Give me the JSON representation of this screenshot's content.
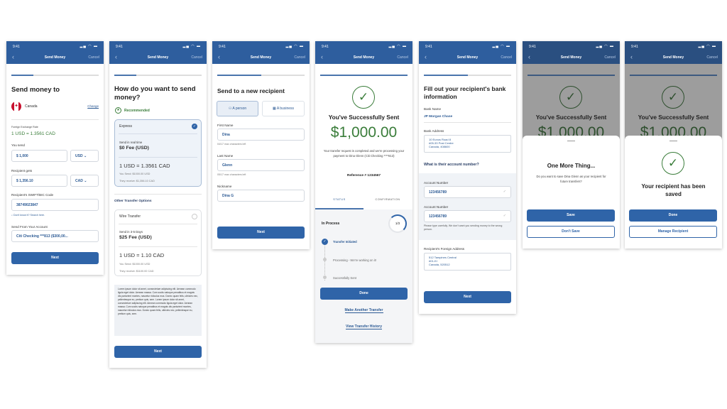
{
  "common": {
    "time": "9:41",
    "status_icons": "signal wifi battery",
    "title": "Send Money",
    "cancel": "Cancel",
    "back_icon": "chevron-left-icon"
  },
  "colors": {
    "header": "#2e5e9e",
    "primary": "#2f64a8",
    "success": "#3a7d3a"
  },
  "s1": {
    "title": "Send money to",
    "country": "Canada",
    "change": "Change",
    "fx_label": "Foreign Exchange Rate",
    "fx_rate": "1 USD = 1.3561 CAD",
    "send_label": "You send",
    "send_value": "$ 1,000",
    "send_currency": "USD",
    "gets_label": "Recipient gets",
    "gets_value": "$ 1,356.10",
    "gets_currency": "CAD",
    "swift_label": "Recipient's SWIFT/BIC Code",
    "swift_value": "38749023847",
    "swift_hint": "Don't know it? Search here.",
    "from_label": "Send From Your Account",
    "from_value": "Citi Checking ***813 ($300,00...",
    "next": "Next",
    "progress": 0.25
  },
  "s2": {
    "title": "How do you want to send money?",
    "recommended": "Recommended",
    "express": {
      "name": "Express",
      "speed": "Send in real time",
      "fee": "$0 Fee (USD)",
      "rate": "1 USD = 1.3561 CAD",
      "send": "You Send: $1000.00 USD",
      "receive": "They receive: $1,356.10 CAD",
      "selected": true
    },
    "other_label": "Other Transfer Options",
    "wire": {
      "name": "Wire Transfer",
      "speed": "Send in 3-5 Days",
      "fee": "$25 Fee (USD)",
      "rate": "1 USD = 1.10 CAD",
      "send": "You Send: $1000.00 USD",
      "receive": "They receive: $1100.00 CAD",
      "selected": false
    },
    "lorem": "Lorem ipsum dolor sit amet, consectetuer adipiscing elit. Aenean commodo ligula eget dolor. Aenean massa. Cum sociis natoque penatibus et magnis dis parturient montes, nascetur ridiculus mus. Donec quam felis, ultricies nec, pellentesque eu, pretium quis, sem. Lorem ipsum dolor sit amet, consectetuer adipiscing elit. Aenean commodo ligula eget dolor. Aenean massa. Cum sociis natoque penatibus et magnis dis parturient montes, nascetur ridiculus mus. Donec quam felis, ultricies nec, pellentesque eu, pretium quis, sem.",
    "next": "Next",
    "progress": 0.25
  },
  "s3": {
    "title": "Send to a new recipient",
    "person": "A person",
    "business": "A business",
    "first_label": "First Name",
    "first_value": "Dina",
    "first_hint": "04/17 max characters left",
    "last_label": "Last Name",
    "last_value": "Glenn",
    "last_hint": "05/17 max characters left",
    "nick_label": "Nickname",
    "nick_value": "Dina G",
    "next": "Next",
    "progress": 0.5
  },
  "s4": {
    "title": "You've Successfully Sent",
    "amount": "$1,000.00",
    "message": "Your transfer request is completed and we're processing your payment to Dina Glenn (Citi Checking ****813)",
    "reference": "Reference # 1234567",
    "tab_status": "STATUS",
    "tab_confirmation": "CONFIRMATION",
    "in_process": "In Process",
    "step_count": "1/3",
    "steps": [
      "Transfer Initiated",
      "Processing - We're working on it!",
      "Successfully Sent"
    ],
    "done": "Done",
    "another": "Make Another Transfer",
    "history": "View Transfer History",
    "progress": 1
  },
  "s5": {
    "title": "Fill out your recipient's bank information",
    "bank_label": "Bank Name",
    "bank_value": "JP Morgan Chase",
    "addr_label": "Bank Address",
    "addr_lines": [
      "10 Eunos Road 8",
      "#05-33 Post Centre",
      "Canada, 408600"
    ],
    "question": "What is their account number?",
    "acct_label": "Account Number",
    "acct_value": "123456789",
    "acct2_label": "Account Number",
    "acct2_value": "123456789",
    "acct_hint": "Please type carefully. We don't want you sending money to the wrong person.",
    "foreign_label": "Recipient's Foreign Address",
    "foreign_lines": [
      "512 Tampines Central",
      "#01-KI",
      "Canada, 520512"
    ],
    "next": "Next",
    "progress": 0.5
  },
  "s6": {
    "bg_title": "You've Successfully Sent",
    "bg_amount": "$1,000.00",
    "title": "One More Thing...",
    "message": "Do you want to save Dina Glenn as your recipient for future transfers?",
    "save": "Save",
    "dont_save": "Don't Save"
  },
  "s7": {
    "bg_title": "You've Successfully Sent",
    "bg_amount": "$1,000.00",
    "title": "Your recipient has been saved",
    "done": "Done",
    "manage": "Manage Recipient"
  }
}
